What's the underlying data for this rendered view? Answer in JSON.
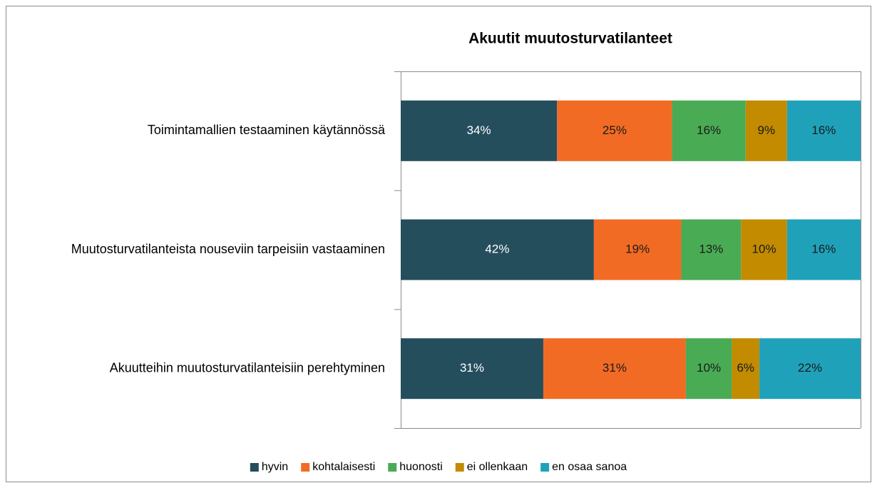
{
  "chart_data": {
    "type": "stacked_barh",
    "title": "Akuutit muutosturvatilanteet",
    "categories": [
      "Toimintamallien testaaminen käytännössä",
      "Muutosturvatilanteista nouseviin tarpeisiin vastaaminen",
      "Akuutteihin muutosturvatilanteisiin perehtyminen"
    ],
    "series": [
      {
        "name": "hyvin",
        "color": "#254e5d",
        "values": [
          34,
          42,
          31
        ],
        "value_labels": [
          "34%",
          "42%",
          "31%"
        ]
      },
      {
        "name": "kohtalaisesti",
        "color": "#f26b24",
        "values": [
          25,
          19,
          31
        ],
        "value_labels": [
          "25%",
          "19%",
          "31%"
        ]
      },
      {
        "name": "huonosti",
        "color": "#4aab55",
        "values": [
          16,
          13,
          10
        ],
        "value_labels": [
          "16%",
          "13%",
          "10%"
        ]
      },
      {
        "name": "ei ollenkaan",
        "color": "#c28b00",
        "values": [
          9,
          10,
          6
        ],
        "value_labels": [
          "9%",
          "10%",
          "6%"
        ]
      },
      {
        "name": "en osaa sanoa",
        "color": "#1fa2b9",
        "values": [
          16,
          16,
          22
        ],
        "value_labels": [
          "16%",
          "16%",
          "22%"
        ]
      }
    ],
    "xlim": [
      0,
      100
    ],
    "legend": "bottom"
  }
}
